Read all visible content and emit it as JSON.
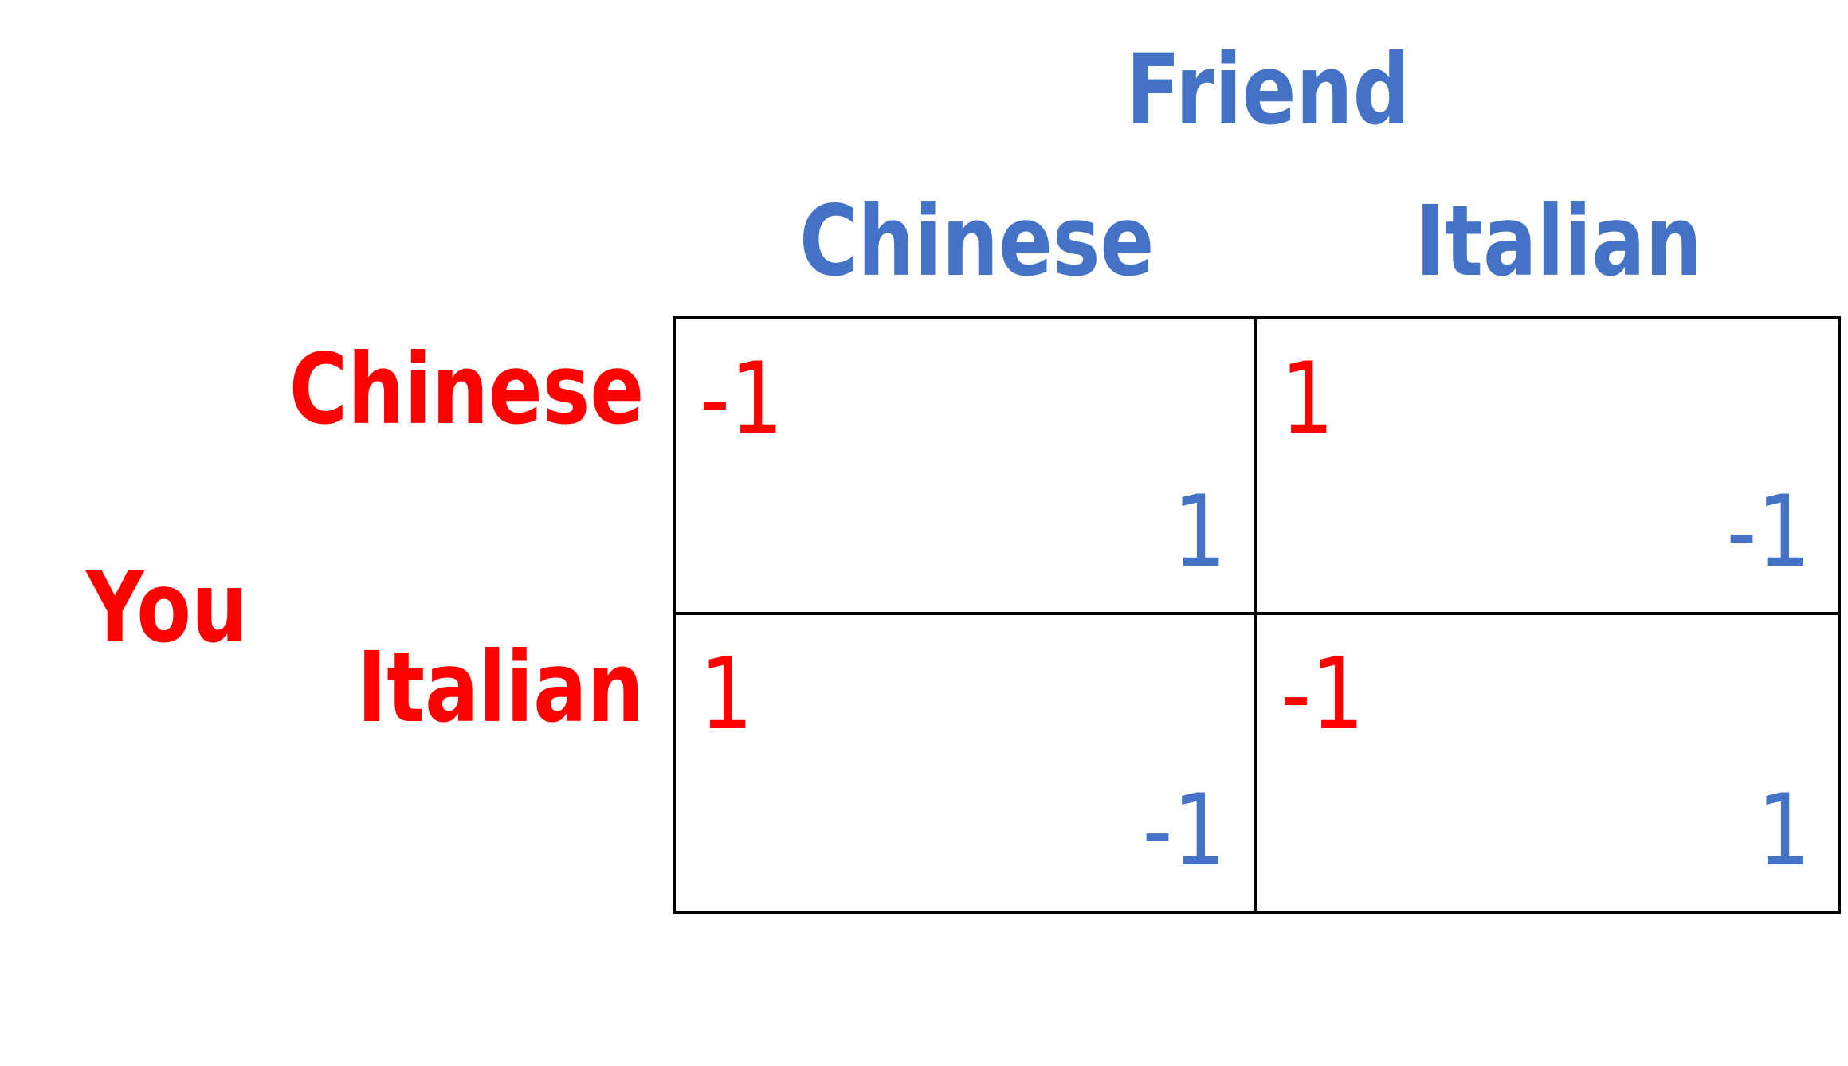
{
  "column_player": "Friend",
  "row_player": "You",
  "column_strategies": [
    "Chinese",
    "Italian"
  ],
  "row_strategies": [
    "Chinese",
    "Italian"
  ],
  "payoffs": [
    [
      {
        "you": "-1",
        "friend": "1"
      },
      {
        "you": "1",
        "friend": "-1"
      }
    ],
    [
      {
        "you": "1",
        "friend": "-1"
      },
      {
        "you": "-1",
        "friend": "1"
      }
    ]
  ],
  "colors": {
    "row_player": "#FF0000",
    "column_player": "#4472C4",
    "grid": "#000000"
  }
}
